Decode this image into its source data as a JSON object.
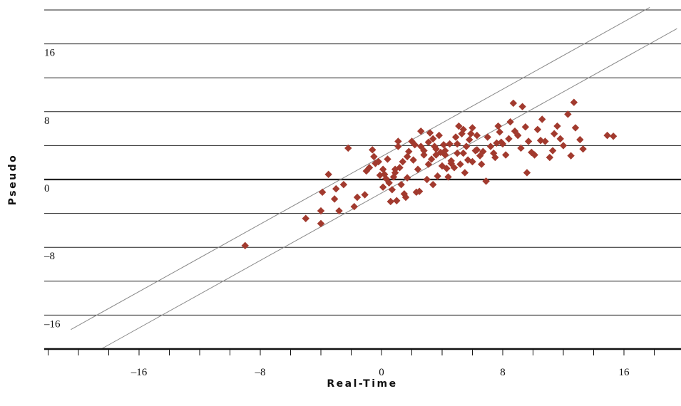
{
  "chart_data": {
    "type": "scatter",
    "title": "",
    "xlabel": "Real-Time",
    "ylabel": "Pseudo",
    "xlim": [
      -22.5,
      19.5
    ],
    "ylim": [
      -20,
      20
    ],
    "xticks": [
      -16,
      -8,
      0,
      8,
      16
    ],
    "yticks": [
      16,
      8,
      0,
      -8,
      -16
    ],
    "xtick_labels": [
      "–16",
      "–8",
      "0",
      "8",
      "16"
    ],
    "ytick_labels": [
      "16",
      "8",
      "0",
      "–8",
      "–16"
    ],
    "x_minor_step": 2,
    "y_gridlines": [
      20,
      16,
      12,
      8,
      4,
      0,
      -4,
      -8,
      -12,
      -16,
      -20
    ],
    "grid": "horizontal",
    "marker": "diamond",
    "color": "#a23a2e",
    "bands": [
      {
        "x": [
          -20.5,
          17.7
        ],
        "y": [
          -17.7,
          20.3
        ]
      },
      {
        "x": [
          -18.5,
          19.5
        ],
        "y": [
          -20,
          17.8
        ]
      }
    ],
    "points": [
      [
        -9,
        -7.8
      ],
      [
        -5,
        -4.6
      ],
      [
        -4,
        -3.7
      ],
      [
        -4,
        -5.2
      ],
      [
        -3.9,
        -1.5
      ],
      [
        -3.5,
        0.6
      ],
      [
        -3.1,
        -2.3
      ],
      [
        -3,
        -1.1
      ],
      [
        -2.8,
        -3.7
      ],
      [
        -2.5,
        -0.6
      ],
      [
        -2.2,
        3.7
      ],
      [
        -1.8,
        -3.2
      ],
      [
        -1.6,
        -2.1
      ],
      [
        -1.1,
        -1.8
      ],
      [
        -1,
        1
      ],
      [
        -0.8,
        1.4
      ],
      [
        -0.6,
        3.5
      ],
      [
        -0.5,
        2.7
      ],
      [
        -0.4,
        1.9
      ],
      [
        -0.2,
        2.1
      ],
      [
        -0.1,
        0.5
      ],
      [
        0.1,
        -0.9
      ],
      [
        0.1,
        1.2
      ],
      [
        0.2,
        0.6
      ],
      [
        0.3,
        0.1
      ],
      [
        0.4,
        2.4
      ],
      [
        0.5,
        -0.4
      ],
      [
        0.6,
        -2.6
      ],
      [
        0.7,
        -1.2
      ],
      [
        0.8,
        0.3
      ],
      [
        0.9,
        0.8
      ],
      [
        0.9,
        1.2
      ],
      [
        1,
        -2.5
      ],
      [
        1.1,
        3.9
      ],
      [
        1.1,
        4.5
      ],
      [
        1.2,
        1.4
      ],
      [
        1.3,
        -0.6
      ],
      [
        1.4,
        2.1
      ],
      [
        1.5,
        -1.7
      ],
      [
        1.6,
        -2.1
      ],
      [
        1.7,
        0.2
      ],
      [
        1.7,
        2.7
      ],
      [
        1.8,
        3.3
      ],
      [
        2,
        4.5
      ],
      [
        2.1,
        2.3
      ],
      [
        2.3,
        -1.5
      ],
      [
        2.4,
        1.2
      ],
      [
        2.5,
        -1.4
      ],
      [
        2.6,
        3.9
      ],
      [
        2.6,
        5.7
      ],
      [
        2.8,
        2.9
      ],
      [
        2.8,
        3.4
      ],
      [
        3,
        0
      ],
      [
        3.1,
        1.8
      ],
      [
        3.1,
        4.4
      ],
      [
        3.2,
        5.5
      ],
      [
        3.3,
        2.4
      ],
      [
        3.4,
        4.8
      ],
      [
        3.4,
        -0.6
      ],
      [
        3.6,
        2.9
      ],
      [
        3.6,
        3.6
      ],
      [
        3.7,
        0.4
      ],
      [
        3.8,
        5.2
      ],
      [
        3.9,
        3.2
      ],
      [
        4,
        1.6
      ],
      [
        4.1,
        4.1
      ],
      [
        4.2,
        2.9
      ],
      [
        4.2,
        3.4
      ],
      [
        4.3,
        1.3
      ],
      [
        4.4,
        0.3
      ],
      [
        4.5,
        4.2
      ],
      [
        4.6,
        1.9
      ],
      [
        4.8,
        1.4
      ],
      [
        4.9,
        5
      ],
      [
        5,
        4.2
      ],
      [
        5,
        3.1
      ],
      [
        5.1,
        6.3
      ],
      [
        5.2,
        1.8
      ],
      [
        5.3,
        5.4
      ],
      [
        5.4,
        5.9
      ],
      [
        5.5,
        0.8
      ],
      [
        5.6,
        3.9
      ],
      [
        5.7,
        2.3
      ],
      [
        5.8,
        4.7
      ],
      [
        5.9,
        5.4
      ],
      [
        6,
        6.1
      ],
      [
        6,
        2.1
      ],
      [
        6.2,
        3.4
      ],
      [
        6.3,
        5.2
      ],
      [
        6.3,
        3.5
      ],
      [
        6.5,
        2.8
      ],
      [
        6.6,
        1.8
      ],
      [
        6.7,
        3.3
      ],
      [
        6.9,
        -0.2
      ],
      [
        7,
        5
      ],
      [
        7.2,
        3.9
      ],
      [
        7.4,
        3.1
      ],
      [
        7.5,
        2.6
      ],
      [
        7.6,
        4.3
      ],
      [
        7.7,
        6.3
      ],
      [
        7.8,
        5.6
      ],
      [
        7.9,
        4.4
      ],
      [
        8,
        4.2
      ],
      [
        8.2,
        2.9
      ],
      [
        8.4,
        4.8
      ],
      [
        8.5,
        6.8
      ],
      [
        8.7,
        9
      ],
      [
        8.8,
        5.7
      ],
      [
        9,
        5.2
      ],
      [
        9.2,
        3.7
      ],
      [
        9.3,
        8.6
      ],
      [
        9.5,
        6.2
      ],
      [
        9.7,
        4.5
      ],
      [
        9.9,
        3.2
      ],
      [
        10.1,
        2.9
      ],
      [
        10.3,
        5.9
      ],
      [
        10.5,
        4.6
      ],
      [
        10.6,
        7.1
      ],
      [
        10.8,
        4.5
      ],
      [
        11.1,
        2.6
      ],
      [
        11.3,
        3.4
      ],
      [
        11.4,
        5.4
      ],
      [
        11.6,
        6.3
      ],
      [
        11.8,
        4.8
      ],
      [
        12,
        4
      ],
      [
        12.3,
        7.7
      ],
      [
        12.5,
        2.8
      ],
      [
        12.7,
        9.1
      ],
      [
        12.8,
        6.1
      ],
      [
        13.1,
        4.7
      ],
      [
        13.3,
        3.6
      ],
      [
        14.9,
        5.2
      ],
      [
        15.3,
        5.1
      ],
      [
        9.6,
        0.8
      ],
      [
        5.4,
        3.1
      ],
      [
        4.6,
        2.2
      ],
      [
        3.5,
        3.9
      ],
      [
        2.2,
        4.1
      ]
    ]
  }
}
